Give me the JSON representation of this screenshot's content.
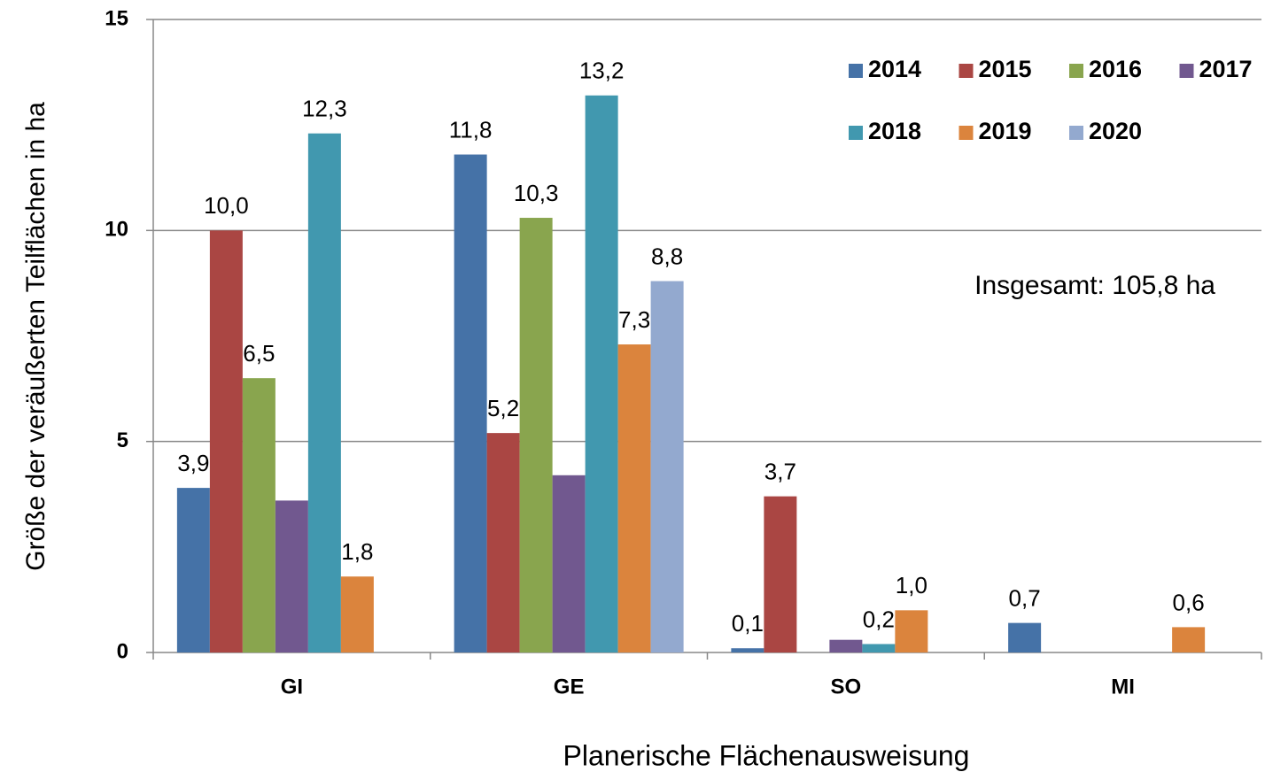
{
  "chart_data": {
    "type": "bar",
    "x_label": "Planerische Flächenausweisung",
    "y_label": "Größe der veräußerten Teilflächen in ha",
    "annotation": "Insgesamt: 105,8 ha",
    "categories": [
      "GI",
      "GE",
      "SO",
      "MI"
    ],
    "ylim": [
      0,
      15
    ],
    "yticks": [
      0,
      5,
      10,
      15
    ],
    "grid": true,
    "legend": "top-right",
    "series": [
      {
        "name": "2014",
        "color": "#4572a7",
        "values": [
          3.9,
          11.8,
          0.1,
          0.7
        ],
        "value_labels": [
          "3,9",
          "11,8",
          "0,1",
          "0,7"
        ]
      },
      {
        "name": "2015",
        "color": "#aa4643",
        "values": [
          10.0,
          5.2,
          3.7,
          null
        ],
        "value_labels": [
          "10,0",
          "5,2",
          "3,7",
          null
        ]
      },
      {
        "name": "2016",
        "color": "#89a54e",
        "values": [
          6.5,
          10.3,
          null,
          null
        ],
        "value_labels": [
          "6,5",
          "10,3",
          null,
          null
        ]
      },
      {
        "name": "2017",
        "color": "#71588f",
        "values": [
          3.6,
          4.2,
          0.3,
          null
        ]
      },
      {
        "name": "2018",
        "color": "#4198af",
        "values": [
          12.3,
          13.2,
          0.2,
          null
        ],
        "value_labels": [
          "12,3",
          "13,2",
          "0,2",
          null
        ]
      },
      {
        "name": "2019",
        "color": "#db843d",
        "values": [
          1.8,
          7.3,
          1.0,
          0.6
        ],
        "value_labels": [
          "1,8",
          "7,3",
          "1,0",
          "0,6"
        ]
      },
      {
        "name": "2020",
        "color": "#93a9cf",
        "values": [
          null,
          8.8,
          null,
          null
        ],
        "value_labels": [
          null,
          "8,8",
          null,
          null
        ]
      }
    ]
  }
}
